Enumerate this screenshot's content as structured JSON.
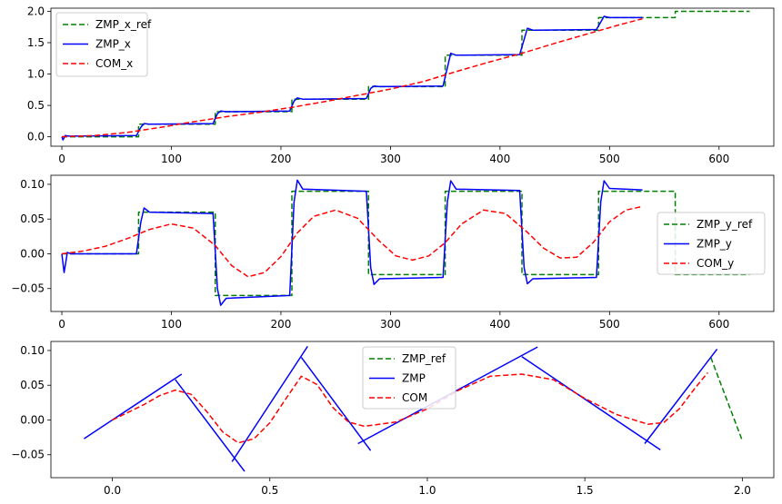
{
  "chart_data": [
    {
      "type": "line",
      "title": "",
      "xlabel": "",
      "ylabel": "",
      "xlim": [
        -10,
        650
      ],
      "ylim": [
        -0.15,
        2.05
      ],
      "xticks": [
        0,
        100,
        200,
        300,
        400,
        500,
        600
      ],
      "xtick_labels": [
        "0",
        "100",
        "200",
        "300",
        "400",
        "500",
        "600"
      ],
      "yticks": [
        0,
        0.5,
        1,
        1.5,
        2
      ],
      "ytick_labels": [
        "0.0",
        "0.5",
        "1.0",
        "1.5",
        "2.0"
      ],
      "grid": false,
      "legend_position": "top-left",
      "series": [
        {
          "name": "ZMP_x_ref",
          "color": "#008000",
          "style": "dashed",
          "x": [
            0,
            70,
            70,
            140,
            140,
            210,
            210,
            280,
            280,
            350,
            350,
            420,
            420,
            490,
            490,
            560,
            560,
            628
          ],
          "y": [
            0,
            0,
            0.2,
            0.2,
            0.4,
            0.4,
            0.6,
            0.6,
            0.8,
            0.8,
            1.3,
            1.3,
            1.7,
            1.7,
            1.9,
            1.9,
            2.0,
            2.0
          ]
        },
        {
          "name": "ZMP_x",
          "color": "#0000ff",
          "style": "solid",
          "x": [
            0,
            1,
            3,
            6,
            10,
            68,
            72,
            75,
            80,
            138,
            142,
            145,
            150,
            208,
            212,
            215,
            220,
            278,
            282,
            285,
            290,
            348,
            352,
            355,
            360,
            418,
            422,
            425,
            430,
            488,
            492,
            495,
            500,
            530
          ],
          "y": [
            0,
            -0.05,
            0.02,
            0.01,
            0.01,
            0.02,
            0.15,
            0.21,
            0.2,
            0.21,
            0.37,
            0.41,
            0.4,
            0.41,
            0.57,
            0.62,
            0.6,
            0.61,
            0.77,
            0.81,
            0.8,
            0.81,
            1.1,
            1.33,
            1.3,
            1.31,
            1.55,
            1.73,
            1.7,
            1.71,
            1.83,
            1.92,
            1.9,
            1.9
          ]
        },
        {
          "name": "COM_x",
          "color": "#ff0000",
          "style": "dashed",
          "x": [
            0,
            30,
            60,
            90,
            120,
            150,
            180,
            210,
            240,
            270,
            300,
            330,
            360,
            390,
            420,
            450,
            480,
            510,
            530
          ],
          "y": [
            0,
            0.02,
            0.07,
            0.15,
            0.24,
            0.32,
            0.39,
            0.47,
            0.56,
            0.66,
            0.76,
            0.88,
            1.04,
            1.19,
            1.33,
            1.49,
            1.64,
            1.79,
            1.88
          ]
        }
      ]
    },
    {
      "type": "line",
      "title": "",
      "xlabel": "",
      "ylabel": "",
      "xlim": [
        -10,
        650
      ],
      "ylim": [
        -0.083,
        0.113
      ],
      "xticks": [
        0,
        100,
        200,
        300,
        400,
        500,
        600
      ],
      "xtick_labels": [
        "0",
        "100",
        "200",
        "300",
        "400",
        "500",
        "600"
      ],
      "yticks": [
        -0.05,
        0,
        0.05,
        0.1
      ],
      "ytick_labels": [
        "−0.05",
        "0.00",
        "0.05",
        "0.10"
      ],
      "grid": false,
      "legend_position": "center-right",
      "series": [
        {
          "name": "ZMP_y_ref",
          "color": "#008000",
          "style": "dashed",
          "x": [
            0,
            70,
            70,
            140,
            140,
            210,
            210,
            280,
            280,
            350,
            350,
            420,
            420,
            490,
            490,
            560,
            560,
            628
          ],
          "y": [
            0,
            0,
            0.06,
            0.06,
            -0.06,
            -0.06,
            0.09,
            0.09,
            -0.03,
            -0.03,
            0.09,
            0.09,
            -0.03,
            -0.03,
            0.09,
            0.09,
            -0.03,
            -0.03
          ]
        },
        {
          "name": "ZMP_y",
          "color": "#0000ff",
          "style": "solid",
          "x": [
            0,
            2,
            5,
            8,
            68,
            72,
            75,
            80,
            138,
            142,
            145,
            150,
            208,
            212,
            215,
            220,
            278,
            282,
            285,
            290,
            348,
            352,
            355,
            360,
            418,
            422,
            425,
            430,
            488,
            492,
            495,
            500,
            530
          ],
          "y": [
            0,
            -0.027,
            0.002,
            0,
            0,
            0.045,
            0.066,
            0.06,
            0.058,
            -0.05,
            -0.074,
            -0.064,
            -0.06,
            0.075,
            0.106,
            0.093,
            0.09,
            -0.02,
            -0.044,
            -0.036,
            -0.034,
            0.075,
            0.105,
            0.093,
            0.091,
            -0.02,
            -0.043,
            -0.036,
            -0.034,
            0.075,
            0.105,
            0.094,
            0.092
          ]
        },
        {
          "name": "COM_y",
          "color": "#ff0000",
          "style": "dashed",
          "x": [
            0,
            20,
            40,
            60,
            80,
            100,
            120,
            140,
            155,
            170,
            185,
            200,
            215,
            230,
            250,
            270,
            290,
            305,
            320,
            335,
            350,
            365,
            385,
            405,
            425,
            440,
            455,
            470,
            485,
            500,
            515,
            530
          ],
          "y": [
            0,
            0.004,
            0.011,
            0.022,
            0.035,
            0.043,
            0.037,
            0.012,
            -0.017,
            -0.033,
            -0.027,
            -0.004,
            0.03,
            0.054,
            0.063,
            0.051,
            0.018,
            -0.003,
            -0.009,
            -0.003,
            0.016,
            0.043,
            0.063,
            0.058,
            0.031,
            0.008,
            -0.006,
            -0.005,
            0.016,
            0.046,
            0.063,
            0.068
          ]
        }
      ]
    },
    {
      "type": "line",
      "title": "",
      "xlabel": "",
      "ylabel": "",
      "xlim": [
        -0.195,
        2.1
      ],
      "ylim": [
        -0.083,
        0.113
      ],
      "xticks": [
        0,
        0.5,
        1,
        1.5,
        2
      ],
      "xtick_labels": [
        "0.0",
        "0.5",
        "1.0",
        "1.5",
        "2.0"
      ],
      "yticks": [
        -0.05,
        0,
        0.05,
        0.1
      ],
      "ytick_labels": [
        "−0.05",
        "0.00",
        "0.05",
        "0.10"
      ],
      "grid": false,
      "legend_position": "top-center",
      "series": [
        {
          "name": "ZMP_ref",
          "color": "#008000",
          "style": "dashed",
          "x": [
            1.9,
            2.0
          ],
          "y": [
            0.09,
            -0.03
          ]
        },
        {
          "name": "ZMP",
          "color": "#0000ff",
          "style": "solid",
          "segments": [
            {
              "x": [
                -0.09,
                0.22
              ],
              "y": [
                -0.027,
                0.066
              ]
            },
            {
              "x": [
                0.2,
                0.42
              ],
              "y": [
                0.058,
                -0.074
              ]
            },
            {
              "x": [
                0.38,
                0.62
              ],
              "y": [
                -0.06,
                0.106
              ]
            },
            {
              "x": [
                0.6,
                0.82
              ],
              "y": [
                0.09,
                -0.044
              ]
            },
            {
              "x": [
                0.78,
                1.35
              ],
              "y": [
                -0.034,
                0.105
              ]
            },
            {
              "x": [
                1.3,
                1.74
              ],
              "y": [
                0.091,
                -0.043
              ]
            },
            {
              "x": [
                1.69,
                1.92
              ],
              "y": [
                -0.034,
                0.102
              ]
            }
          ]
        },
        {
          "name": "COM",
          "color": "#ff0000",
          "style": "dashed",
          "x": [
            0,
            0.05,
            0.1,
            0.15,
            0.2,
            0.25,
            0.3,
            0.35,
            0.4,
            0.45,
            0.5,
            0.55,
            0.6,
            0.65,
            0.7,
            0.75,
            0.8,
            0.9,
            1.0,
            1.1,
            1.2,
            1.3,
            1.4,
            1.5,
            1.6,
            1.7,
            1.75,
            1.8,
            1.85,
            1.89
          ],
          "y": [
            0,
            0.011,
            0.022,
            0.035,
            0.043,
            0.037,
            0.012,
            -0.017,
            -0.033,
            -0.027,
            -0.004,
            0.03,
            0.063,
            0.051,
            0.018,
            -0.003,
            -0.009,
            -0.003,
            0.016,
            0.043,
            0.063,
            0.066,
            0.058,
            0.031,
            0.008,
            -0.006,
            -0.004,
            0.016,
            0.046,
            0.068
          ]
        }
      ]
    }
  ]
}
